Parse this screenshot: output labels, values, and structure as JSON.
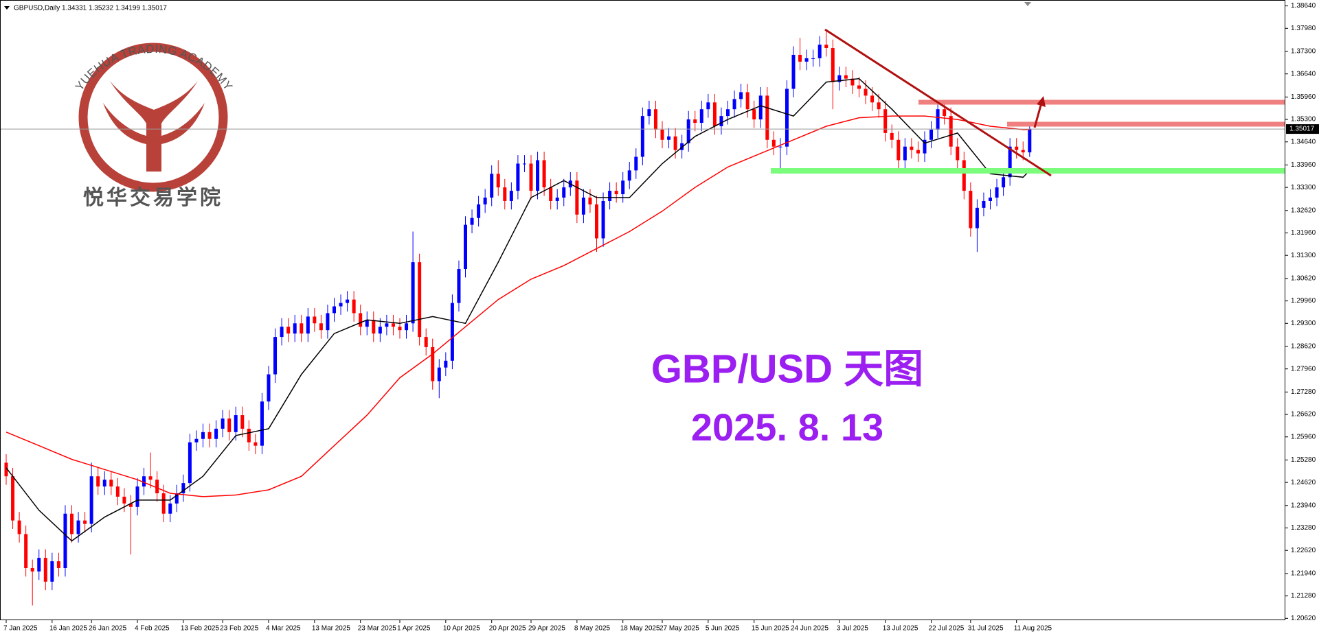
{
  "chart_data": {
    "type": "candlestick",
    "header": "GBPUSD,Daily  1.34331 1.35232 1.34199 1.35017",
    "title": "GBP/USD 天图",
    "subtitle": "2025. 8. 13",
    "logo": {
      "arc_text": "YUEHUA TRADING ACADEMY",
      "cn_text": "悦华交易学院"
    },
    "up_color": "#0000ff",
    "down_color": "#ff0000",
    "candles": {
      "open": [
        1.252,
        1.248,
        1.235,
        1.231,
        1.221,
        1.22,
        1.224,
        1.217,
        1.223,
        1.221,
        1.237,
        1.231,
        1.235,
        1.234,
        1.248,
        1.245,
        1.247,
        1.245,
        1.242,
        1.24,
        1.239,
        1.245,
        1.248,
        1.247,
        1.243,
        1.237,
        1.24,
        1.243,
        1.246,
        1.258,
        1.259,
        1.261,
        1.259,
        1.262,
        1.265,
        1.261,
        1.266,
        1.262,
        1.258,
        1.257,
        1.27,
        1.278,
        1.289,
        1.292,
        1.29,
        1.293,
        1.29,
        1.295,
        1.293,
        1.291,
        1.296,
        1.298,
        1.299,
        1.3,
        1.296,
        1.292,
        1.294,
        1.29,
        1.292,
        1.293,
        1.292,
        1.291,
        1.293,
        1.311,
        1.289,
        1.286,
        1.276,
        1.28,
        1.282,
        1.299,
        1.309,
        1.322,
        1.324,
        1.328,
        1.33,
        1.337,
        1.333,
        1.329,
        1.332,
        1.34,
        1.34,
        1.332,
        1.341,
        1.333,
        1.329,
        1.33,
        1.333,
        1.335,
        1.325,
        1.33,
        1.328,
        1.318,
        1.329,
        1.332,
        1.331,
        1.335,
        1.338,
        1.342,
        1.354,
        1.356,
        1.35,
        1.347,
        1.348,
        1.344,
        1.346,
        1.353,
        1.352,
        1.356,
        1.358,
        1.351,
        1.354,
        1.356,
        1.359,
        1.361,
        1.356,
        1.353,
        1.36,
        1.347,
        1.345,
        1.345,
        1.362,
        1.372,
        1.37,
        1.371,
        1.371,
        1.375,
        1.374,
        1.364,
        1.366,
        1.365,
        1.363,
        1.362,
        1.36,
        1.358,
        1.356,
        1.349,
        1.347,
        1.341,
        1.345,
        1.344,
        1.343,
        1.347,
        1.35,
        1.356,
        1.354,
        1.345,
        1.341,
        1.332,
        1.321,
        1.327,
        1.329,
        1.33,
        1.333,
        1.336,
        1.345,
        1.344,
        1.34331
      ],
      "high": [
        1.2545,
        1.2505,
        1.2375,
        1.2335,
        1.2235,
        1.2265,
        1.2265,
        1.2255,
        1.2255,
        1.2395,
        1.2395,
        1.2375,
        1.2375,
        1.252,
        1.2505,
        1.2495,
        1.2495,
        1.2475,
        1.2445,
        1.2425,
        1.2475,
        1.2505,
        1.255,
        1.2495,
        1.2455,
        1.2425,
        1.2455,
        1.2485,
        1.2605,
        1.2615,
        1.2635,
        1.2635,
        1.2645,
        1.2675,
        1.2675,
        1.2685,
        1.2685,
        1.2645,
        1.2605,
        1.2725,
        1.2805,
        1.2915,
        1.2945,
        1.2945,
        1.2955,
        1.2955,
        1.2975,
        1.2975,
        1.2955,
        1.2985,
        1.3005,
        1.3015,
        1.3025,
        1.3025,
        1.2985,
        1.2965,
        1.2965,
        1.2945,
        1.2955,
        1.2955,
        1.2945,
        1.2955,
        1.32,
        1.3135,
        1.2915,
        1.2885,
        1.2825,
        1.2845,
        1.3015,
        1.3115,
        1.3245,
        1.3265,
        1.3305,
        1.3325,
        1.3395,
        1.341,
        1.3355,
        1.3345,
        1.3425,
        1.3425,
        1.3425,
        1.3435,
        1.3435,
        1.3355,
        1.3325,
        1.3355,
        1.3375,
        1.3375,
        1.3325,
        1.3325,
        1.3305,
        1.3315,
        1.3345,
        1.3345,
        1.3375,
        1.3405,
        1.3445,
        1.3565,
        1.3585,
        1.3585,
        1.3525,
        1.3505,
        1.3505,
        1.3485,
        1.3555,
        1.3555,
        1.3585,
        1.3605,
        1.3605,
        1.3565,
        1.3585,
        1.3615,
        1.3635,
        1.3635,
        1.3585,
        1.3625,
        1.3625,
        1.3495,
        1.3475,
        1.3645,
        1.3745,
        1.377,
        1.3735,
        1.3735,
        1.3775,
        1.379,
        1.3765,
        1.3685,
        1.3685,
        1.3675,
        1.3655,
        1.3645,
        1.3625,
        1.3605,
        1.3585,
        1.3515,
        1.3495,
        1.3475,
        1.3475,
        1.3465,
        1.3495,
        1.3525,
        1.3585,
        1.3585,
        1.3565,
        1.3475,
        1.3435,
        1.3345,
        1.3295,
        1.3315,
        1.3325,
        1.3355,
        1.3385,
        1.3475,
        1.3475,
        1.3465,
        1.35232
      ],
      "low": [
        1.2455,
        1.2325,
        1.2285,
        1.2185,
        1.21,
        1.2175,
        1.2145,
        1.2145,
        1.2185,
        1.2185,
        1.2285,
        1.2285,
        1.2315,
        1.2315,
        1.2425,
        1.2425,
        1.2425,
        1.2395,
        1.2375,
        1.225,
        1.2365,
        1.2425,
        1.2445,
        1.2405,
        1.2345,
        1.2345,
        1.2375,
        1.2405,
        1.2435,
        1.2555,
        1.2565,
        1.2565,
        1.2565,
        1.2595,
        1.2585,
        1.2585,
        1.2595,
        1.2555,
        1.2545,
        1.2545,
        1.2675,
        1.2755,
        1.2865,
        1.2875,
        1.2875,
        1.2875,
        1.2875,
        1.2905,
        1.2885,
        1.2885,
        1.2935,
        1.2955,
        1.2965,
        1.2935,
        1.2895,
        1.2895,
        1.2875,
        1.2875,
        1.2895,
        1.2895,
        1.2885,
        1.2885,
        1.2905,
        1.2865,
        1.2835,
        1.2735,
        1.271,
        1.2775,
        1.2795,
        1.2965,
        1.3065,
        1.3195,
        1.3215,
        1.3255,
        1.3275,
        1.3305,
        1.3265,
        1.3265,
        1.3295,
        1.3375,
        1.3295,
        1.3295,
        1.3305,
        1.3265,
        1.3265,
        1.3275,
        1.3305,
        1.3225,
        1.3225,
        1.3255,
        1.314,
        1.3155,
        1.3265,
        1.3285,
        1.3285,
        1.3325,
        1.3355,
        1.3395,
        1.3515,
        1.3475,
        1.3445,
        1.3445,
        1.3415,
        1.3415,
        1.3435,
        1.3495,
        1.3495,
        1.3535,
        1.3485,
        1.3485,
        1.3515,
        1.3535,
        1.3565,
        1.3535,
        1.3505,
        1.3505,
        1.3445,
        1.3425,
        1.337,
        1.3425,
        1.3595,
        1.3675,
        1.3675,
        1.3685,
        1.3685,
        1.3715,
        1.356,
        1.3615,
        1.3625,
        1.3605,
        1.3595,
        1.3575,
        1.3555,
        1.3535,
        1.3465,
        1.3445,
        1.3385,
        1.3385,
        1.3415,
        1.3405,
        1.3405,
        1.3445,
        1.3475,
        1.3515,
        1.3425,
        1.3385,
        1.3295,
        1.3185,
        1.314,
        1.3245,
        1.3265,
        1.3275,
        1.3305,
        1.3335,
        1.3415,
        1.341,
        1.34199
      ],
      "close": [
        1.248,
        1.235,
        1.231,
        1.221,
        1.22,
        1.224,
        1.217,
        1.223,
        1.221,
        1.237,
        1.231,
        1.235,
        1.234,
        1.248,
        1.245,
        1.247,
        1.245,
        1.242,
        1.24,
        1.239,
        1.245,
        1.248,
        1.247,
        1.243,
        1.237,
        1.24,
        1.243,
        1.246,
        1.258,
        1.259,
        1.261,
        1.259,
        1.262,
        1.265,
        1.261,
        1.266,
        1.262,
        1.258,
        1.257,
        1.27,
        1.278,
        1.289,
        1.292,
        1.29,
        1.293,
        1.29,
        1.295,
        1.293,
        1.291,
        1.296,
        1.298,
        1.299,
        1.3,
        1.296,
        1.292,
        1.294,
        1.29,
        1.292,
        1.293,
        1.292,
        1.291,
        1.293,
        1.311,
        1.289,
        1.286,
        1.276,
        1.28,
        1.282,
        1.299,
        1.309,
        1.322,
        1.324,
        1.328,
        1.33,
        1.337,
        1.333,
        1.329,
        1.332,
        1.34,
        1.34,
        1.332,
        1.341,
        1.333,
        1.329,
        1.33,
        1.333,
        1.335,
        1.325,
        1.33,
        1.328,
        1.318,
        1.329,
        1.332,
        1.331,
        1.335,
        1.338,
        1.342,
        1.354,
        1.356,
        1.35,
        1.347,
        1.348,
        1.344,
        1.346,
        1.353,
        1.352,
        1.356,
        1.358,
        1.351,
        1.354,
        1.356,
        1.359,
        1.361,
        1.356,
        1.353,
        1.36,
        1.347,
        1.345,
        1.345,
        1.362,
        1.372,
        1.37,
        1.371,
        1.371,
        1.375,
        1.374,
        1.364,
        1.366,
        1.365,
        1.363,
        1.362,
        1.36,
        1.358,
        1.356,
        1.349,
        1.347,
        1.341,
        1.345,
        1.344,
        1.343,
        1.347,
        1.35,
        1.356,
        1.354,
        1.345,
        1.341,
        1.332,
        1.321,
        1.327,
        1.329,
        1.33,
        1.333,
        1.336,
        1.345,
        1.344,
        1.34331,
        1.35017
      ]
    },
    "ma": {
      "x": [
        0,
        5,
        10,
        15,
        20,
        25,
        30,
        35,
        40,
        45,
        50,
        55,
        60,
        65,
        70,
        75,
        80,
        85,
        90,
        95,
        100,
        105,
        110,
        115,
        120,
        125,
        130,
        135,
        140,
        145,
        150,
        155,
        156
      ],
      "series": [
        {
          "color": "#000000",
          "values": [
            1.2505,
            1.238,
            1.229,
            1.236,
            1.241,
            1.241,
            1.248,
            1.26,
            1.262,
            1.278,
            1.29,
            1.294,
            1.293,
            1.295,
            1.293,
            1.311,
            1.33,
            1.335,
            1.33,
            1.33,
            1.34,
            1.348,
            1.353,
            1.357,
            1.354,
            1.364,
            1.365,
            1.356,
            1.346,
            1.349,
            1.337,
            1.336,
            1.338
          ]
        },
        {
          "color": "#ff0000",
          "values": [
            1.261,
            1.257,
            1.253,
            1.25,
            1.247,
            1.243,
            1.242,
            1.2425,
            1.244,
            1.248,
            1.257,
            1.266,
            1.277,
            1.284,
            1.292,
            1.3,
            1.306,
            1.31,
            1.315,
            1.32,
            1.326,
            1.333,
            1.339,
            1.343,
            1.347,
            1.351,
            1.3535,
            1.354,
            1.354,
            1.353,
            1.351,
            1.35,
            1.35
          ]
        }
      ]
    },
    "ylim": [
      1.2062,
      1.3864
    ],
    "yticks": [
      {
        "value": 1.3864,
        "label": "1.38640"
      },
      {
        "value": 1.3798,
        "label": "1.37980"
      },
      {
        "value": 1.373,
        "label": "1.37300"
      },
      {
        "value": 1.3664,
        "label": "1.36640"
      },
      {
        "value": 1.3596,
        "label": "1.35960"
      },
      {
        "value": 1.353,
        "label": "1.35300"
      },
      {
        "value": 1.3464,
        "label": "1.34640"
      },
      {
        "value": 1.3396,
        "label": "1.33960"
      },
      {
        "value": 1.333,
        "label": "1.33300"
      },
      {
        "value": 1.3262,
        "label": "1.32620"
      },
      {
        "value": 1.3196,
        "label": "1.31960"
      },
      {
        "value": 1.313,
        "label": "1.31300"
      },
      {
        "value": 1.3062,
        "label": "1.30620"
      },
      {
        "value": 1.2996,
        "label": "1.29960"
      },
      {
        "value": 1.293,
        "label": "1.29300"
      },
      {
        "value": 1.2862,
        "label": "1.28620"
      },
      {
        "value": 1.2796,
        "label": "1.27960"
      },
      {
        "value": 1.2728,
        "label": "1.27280"
      },
      {
        "value": 1.2662,
        "label": "1.26620"
      },
      {
        "value": 1.2596,
        "label": "1.25960"
      },
      {
        "value": 1.2528,
        "label": "1.25280"
      },
      {
        "value": 1.2462,
        "label": "1.24620"
      },
      {
        "value": 1.2394,
        "label": "1.23940"
      },
      {
        "value": 1.2328,
        "label": "1.23280"
      },
      {
        "value": 1.2262,
        "label": "1.22620"
      },
      {
        "value": 1.2194,
        "label": "1.21940"
      },
      {
        "value": 1.2128,
        "label": "1.21280"
      },
      {
        "value": 1.2062,
        "label": "1.20620"
      }
    ],
    "xticks": [
      {
        "value": 0,
        "label": "7 Jan 2025"
      },
      {
        "value": 7,
        "label": "16 Jan 2025"
      },
      {
        "value": 13,
        "label": "26 Jan 2025"
      },
      {
        "value": 20,
        "label": "4 Feb 2025"
      },
      {
        "value": 27,
        "label": "13 Feb 2025"
      },
      {
        "value": 33,
        "label": "23 Feb 2025"
      },
      {
        "value": 40,
        "label": "4 Mar 2025"
      },
      {
        "value": 47,
        "label": "13 Mar 2025"
      },
      {
        "value": 54,
        "label": "23 Mar 2025"
      },
      {
        "value": 60,
        "label": "1 Apr 2025"
      },
      {
        "value": 67,
        "label": "10 Apr 2025"
      },
      {
        "value": 74,
        "label": "20 Apr 2025"
      },
      {
        "value": 80,
        "label": "29 Apr 2025"
      },
      {
        "value": 87,
        "label": "8 May 2025"
      },
      {
        "value": 94,
        "label": "18 May 2025"
      },
      {
        "value": 100,
        "label": "27 May 2025"
      },
      {
        "value": 107,
        "label": "5 Jun 2025"
      },
      {
        "value": 114,
        "label": "15 Jun 2025"
      },
      {
        "value": 120,
        "label": "24 Jun 2025"
      },
      {
        "value": 127,
        "label": "3 Jul 2025"
      },
      {
        "value": 134,
        "label": "13 Jul 2025"
      },
      {
        "value": 141,
        "label": "22 Jul 2025"
      },
      {
        "value": 147,
        "label": "31 Jul 2025"
      },
      {
        "value": 154,
        "label": "11 Aug 2025"
      }
    ]
  }
}
